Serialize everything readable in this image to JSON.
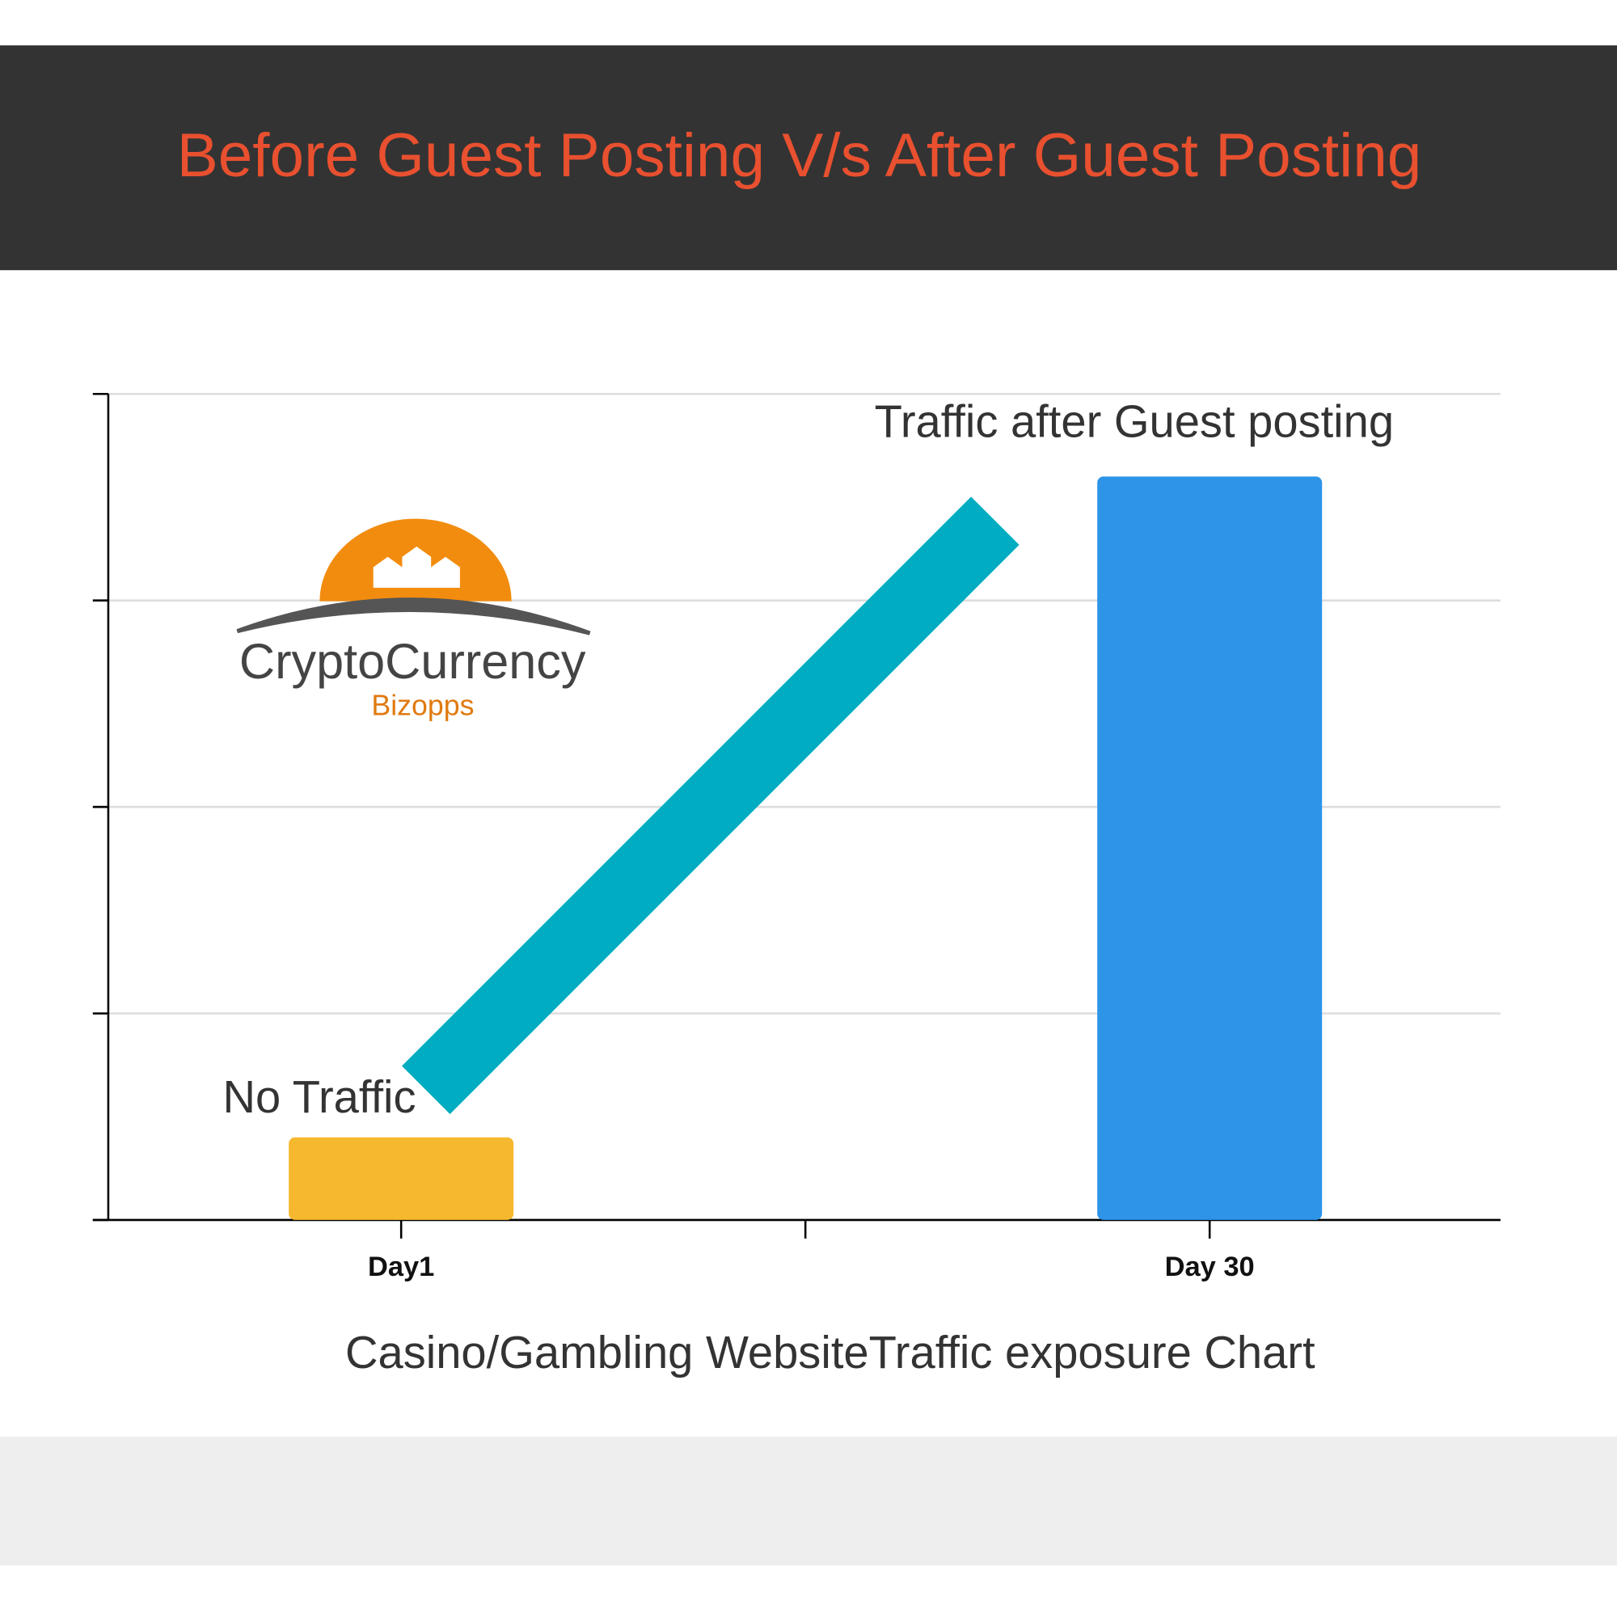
{
  "chart_data": {
    "type": "bar",
    "title": "Before Guest Posting V/s After Guest Posting",
    "x_label": "Casino/Gambling WebsiteTraffic exposure Chart",
    "categories": [
      "Day1",
      null,
      "Day 30"
    ],
    "values": [
      0.4,
      null,
      3.6
    ],
    "colors": [
      "#f5b82e",
      null,
      "#2d94e8"
    ],
    "ylim": [
      0,
      4
    ],
    "yticks": [
      0,
      1,
      2,
      3,
      4
    ],
    "grid": true,
    "annotations": [
      "No Traffic",
      "Traffic  after Guest posting"
    ],
    "logo": {
      "name": "CryptoCurrency",
      "tagline": "Bizopps"
    }
  }
}
